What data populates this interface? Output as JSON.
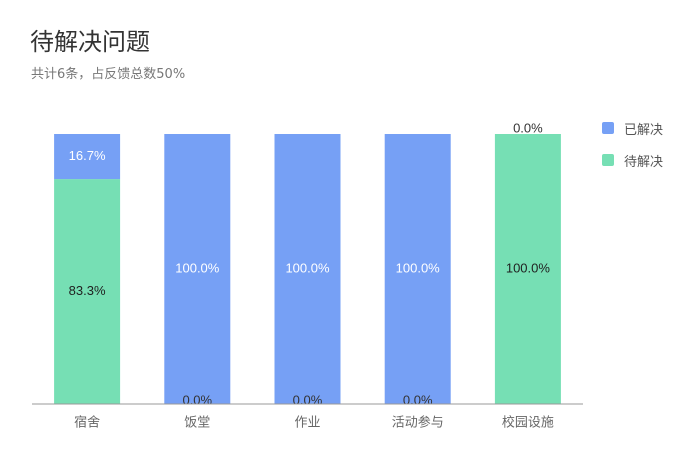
{
  "title": "待解决问题",
  "subtitle": "共计6条，占反馈总数50%",
  "legend": {
    "resolved": "已解决",
    "pending": "待解决"
  },
  "colors": {
    "resolved": "#76a0f5",
    "pending": "#76dfb4",
    "axis": "#999999",
    "tick_label": "#666666"
  },
  "chart_data": {
    "type": "bar",
    "stacked": true,
    "percent_stacked": true,
    "categories": [
      "宿舍",
      "饭堂",
      "作业",
      "活动参与",
      "校园设施"
    ],
    "series": [
      {
        "name": "待解决",
        "values": [
          83.3,
          0.0,
          0.0,
          0.0,
          100.0
        ]
      },
      {
        "name": "已解决",
        "values": [
          16.7,
          100.0,
          100.0,
          100.0,
          0.0
        ]
      }
    ],
    "data_labels": {
      "待解决": [
        "83.3%",
        "0.0%",
        "0.0%",
        "0.0%",
        "100.0%"
      ],
      "已解决": [
        "16.7%",
        "100.0%",
        "100.0%",
        "100.0%",
        "0.0%"
      ]
    },
    "ylim": [
      0,
      100
    ],
    "legend_position": "right"
  }
}
